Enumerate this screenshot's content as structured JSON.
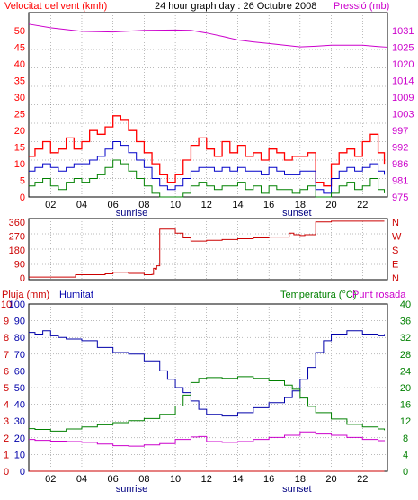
{
  "header": {
    "title": "24 hour graph day : 26 Octubre 2008"
  },
  "colors": {
    "frame": "#000000",
    "grid": "#777777",
    "hatch": "#c8c8c8",
    "speed": "#ff0000",
    "gust": "#ff0000",
    "avg": "#0000c8",
    "min": "#008000",
    "pressure": "#cc00cc",
    "direction": "#cc0000",
    "humidity": "#0000aa",
    "temperature": "#008000",
    "dewpoint": "#cc00cc",
    "rain": "#cc0000"
  },
  "x_axis": {
    "ticks": [
      "02",
      "04",
      "06",
      "08",
      "10",
      "12",
      "14",
      "16",
      "18",
      "20",
      "22"
    ],
    "sunrise_label": "sunrise",
    "sunset_label": "sunset",
    "sunrise_hour": 7.2,
    "sunset_hour": 17.8
  },
  "chart_data": [
    {
      "type": "line",
      "id": "wind",
      "left_label": "Velocitat del vent (kmh)",
      "right_label": "Pressió (mb)",
      "left_ticks": [
        "50",
        "45",
        "40",
        "35",
        "30",
        "25",
        "20",
        "15",
        "10",
        "5",
        "0"
      ],
      "right_ticks": [
        "1031",
        "1025",
        "1020",
        "1014",
        "1009",
        "1003",
        "997",
        "992",
        "986",
        "981",
        "975"
      ],
      "ylim_left": [
        0,
        50
      ],
      "ylim_right": [
        975,
        1031
      ],
      "xlim": [
        0.6,
        23.6
      ],
      "series": [
        {
          "key": "gust",
          "x": [
            0.6,
            1,
            1.5,
            2,
            2.5,
            3,
            3.5,
            4,
            4.5,
            5,
            5.5,
            6,
            6.5,
            7,
            7.5,
            8,
            8.5,
            9,
            9.5,
            10,
            10.5,
            11,
            11.5,
            12,
            12.5,
            13,
            13.5,
            14,
            14.5,
            15,
            15.5,
            16,
            16.5,
            17,
            17.5,
            18,
            18.5,
            19,
            19.5,
            20,
            20.5,
            21,
            21.5,
            22,
            22.5,
            23,
            23.4
          ],
          "y": [
            11,
            13,
            15,
            12,
            13,
            16,
            13,
            15,
            18,
            17,
            19,
            22,
            21,
            18,
            15,
            12,
            9,
            6,
            4,
            6,
            10,
            14,
            16,
            13,
            11,
            15,
            12,
            14,
            11,
            12,
            10,
            13,
            12,
            10,
            11,
            11,
            12,
            4,
            3,
            9,
            12,
            13,
            11,
            15,
            17,
            12,
            9
          ]
        },
        {
          "key": "avg",
          "x": [
            0.6,
            1,
            1.5,
            2,
            2.5,
            3,
            3.5,
            4,
            4.5,
            5,
            5.5,
            6,
            6.5,
            7,
            7.5,
            8,
            8.5,
            9,
            9.5,
            10,
            10.5,
            11,
            11.5,
            12,
            12.5,
            13,
            13.5,
            14,
            14.5,
            15,
            15.5,
            16,
            16.5,
            17,
            17.5,
            18,
            18.5,
            19,
            19.5,
            20,
            20.5,
            21,
            21.5,
            22,
            22.5,
            23,
            23.4
          ],
          "y": [
            7,
            8,
            9,
            8,
            7,
            8,
            9,
            9,
            10,
            11,
            13,
            15,
            14,
            12,
            10,
            8,
            5,
            3,
            2,
            3,
            5,
            7,
            8,
            8,
            7,
            8,
            7,
            8,
            7,
            7,
            6,
            8,
            7,
            6,
            6,
            7,
            7,
            2,
            1,
            5,
            7,
            8,
            7,
            8,
            9,
            7,
            6
          ]
        },
        {
          "key": "min",
          "x": [
            0.6,
            1,
            1.5,
            2,
            2.5,
            3,
            3.5,
            4,
            4.5,
            5,
            5.5,
            6,
            6.5,
            7,
            7.5,
            8,
            8.5,
            9,
            9.5,
            10,
            10.5,
            11,
            11.5,
            12,
            12.5,
            13,
            13.5,
            14,
            14.5,
            15,
            15.5,
            16,
            16.5,
            17,
            17.5,
            18,
            18.5,
            19,
            19.5,
            20,
            20.5,
            21,
            21.5,
            22,
            22.5,
            23,
            23.4
          ],
          "y": [
            3,
            4,
            5,
            3,
            2,
            4,
            5,
            4,
            5,
            6,
            8,
            10,
            9,
            7,
            5,
            3,
            1,
            0,
            0,
            0,
            1,
            3,
            4,
            3,
            2,
            3,
            3,
            4,
            2,
            3,
            1,
            3,
            2,
            2,
            1,
            2,
            3,
            0,
            0,
            1,
            3,
            4,
            2,
            3,
            5,
            2,
            1
          ]
        },
        {
          "key": "pressure",
          "axis": "right",
          "x": [
            0.6,
            2,
            4,
            6,
            8,
            10,
            11,
            12,
            13,
            14,
            15,
            16,
            17,
            18,
            19,
            20,
            21,
            22,
            23,
            23.6
          ],
          "y": [
            1027.5,
            1026.4,
            1025.3,
            1025.1,
            1025.6,
            1025.7,
            1025.6,
            1024.8,
            1023.8,
            1022.7,
            1022.1,
            1021.6,
            1021.1,
            1020.6,
            1020.8,
            1021.1,
            1021.1,
            1021.1,
            1020.7,
            1020.5
          ]
        }
      ]
    },
    {
      "type": "line",
      "id": "direction",
      "left_ticks": [
        "360",
        "270",
        "180",
        "90",
        "0"
      ],
      "right_ticks": [
        "N",
        "W",
        "S",
        "E",
        "N"
      ],
      "ylim": [
        0,
        360
      ],
      "xlim": [
        0.6,
        23.6
      ],
      "series": [
        {
          "key": "direction",
          "x": [
            0.6,
            2,
            3.5,
            3.6,
            5.5,
            6,
            7,
            8,
            8.5,
            8.6,
            8.7,
            8.8,
            9,
            10,
            10.5,
            11,
            12,
            13,
            14,
            15,
            16,
            17,
            17.3,
            17.6,
            18,
            18.3,
            18.5,
            19,
            20,
            21,
            22,
            23.4
          ],
          "y": [
            5,
            5,
            5,
            20,
            25,
            35,
            28,
            20,
            22,
            60,
            55,
            75,
            305,
            280,
            250,
            230,
            235,
            240,
            245,
            250,
            255,
            255,
            280,
            270,
            265,
            270,
            270,
            350,
            355,
            355,
            355,
            355
          ]
        }
      ]
    },
    {
      "type": "line",
      "id": "weather",
      "left_label_rain": "Pluja (mm)",
      "left_label_hum": "Humitat",
      "right_label_temp": "Temperatura (°C)",
      "right_label_dew": "Punt rosada",
      "left_ticks_rain": [
        "10",
        "9",
        "8",
        "7",
        "6",
        "5",
        "4",
        "3",
        "2",
        "1",
        "0"
      ],
      "left_ticks_hum": [
        "100",
        "90",
        "80",
        "70",
        "60",
        "50",
        "40",
        "30",
        "20",
        "10",
        "0"
      ],
      "right_ticks": [
        "40",
        "36",
        "32",
        "28",
        "24",
        "20",
        "16",
        "12",
        "8",
        "4",
        "0"
      ],
      "ylim_hum": [
        0,
        100
      ],
      "ylim_temp": [
        0,
        40
      ],
      "xlim": [
        0.6,
        23.6
      ],
      "series": [
        {
          "key": "humidity",
          "x": [
            0.6,
            1,
            1.5,
            2,
            2.5,
            3,
            4,
            5,
            6,
            7,
            8,
            9,
            9.5,
            10,
            10.5,
            11,
            11.5,
            12,
            13,
            14,
            15,
            16,
            17,
            17.5,
            18,
            18.5,
            19,
            19.5,
            20,
            21,
            22,
            23,
            23.4
          ],
          "y": [
            83,
            82,
            84,
            81,
            80,
            79,
            78,
            74,
            71,
            70,
            66,
            60,
            55,
            50,
            47,
            42,
            37,
            34,
            33,
            35,
            38,
            41,
            44,
            48,
            55,
            62,
            71,
            78,
            82,
            84,
            82,
            81,
            82
          ]
        },
        {
          "key": "temperature",
          "x": [
            0.6,
            1,
            2,
            3,
            4,
            5,
            6,
            7,
            8,
            9,
            10,
            10.5,
            11,
            11.5,
            12,
            13,
            14,
            15,
            16,
            17,
            17.5,
            18,
            18.5,
            19,
            20,
            21,
            22,
            23,
            23.4
          ],
          "y": [
            10.2,
            10,
            9.6,
            10.1,
            10.6,
            11.1,
            11.6,
            12.1,
            12.6,
            13.6,
            15.6,
            18.2,
            21.2,
            22.2,
            22.4,
            22.2,
            22.6,
            22.2,
            21.6,
            20.6,
            19.6,
            17.5,
            15.5,
            14,
            12.5,
            11.2,
            10.6,
            10.1,
            9.8
          ]
        },
        {
          "key": "dewpoint",
          "x": [
            0.6,
            1,
            2,
            3,
            4,
            5,
            6,
            7,
            8,
            9,
            10,
            11,
            11.5,
            12,
            13,
            14,
            15,
            16,
            17,
            18,
            19,
            20,
            21,
            22,
            23,
            23.4
          ],
          "y": [
            7.6,
            7.4,
            7.2,
            7.1,
            6.9,
            6.5,
            6.1,
            6.0,
            6.3,
            6.6,
            7.6,
            8.2,
            8.3,
            7.1,
            6.9,
            7.1,
            7.6,
            8.1,
            8.6,
            9.4,
            8.9,
            8.6,
            8.1,
            7.6,
            7.3,
            7.2
          ]
        },
        {
          "key": "rain",
          "x": [
            0.6,
            23.4
          ],
          "y": [
            0,
            0
          ]
        }
      ]
    }
  ]
}
